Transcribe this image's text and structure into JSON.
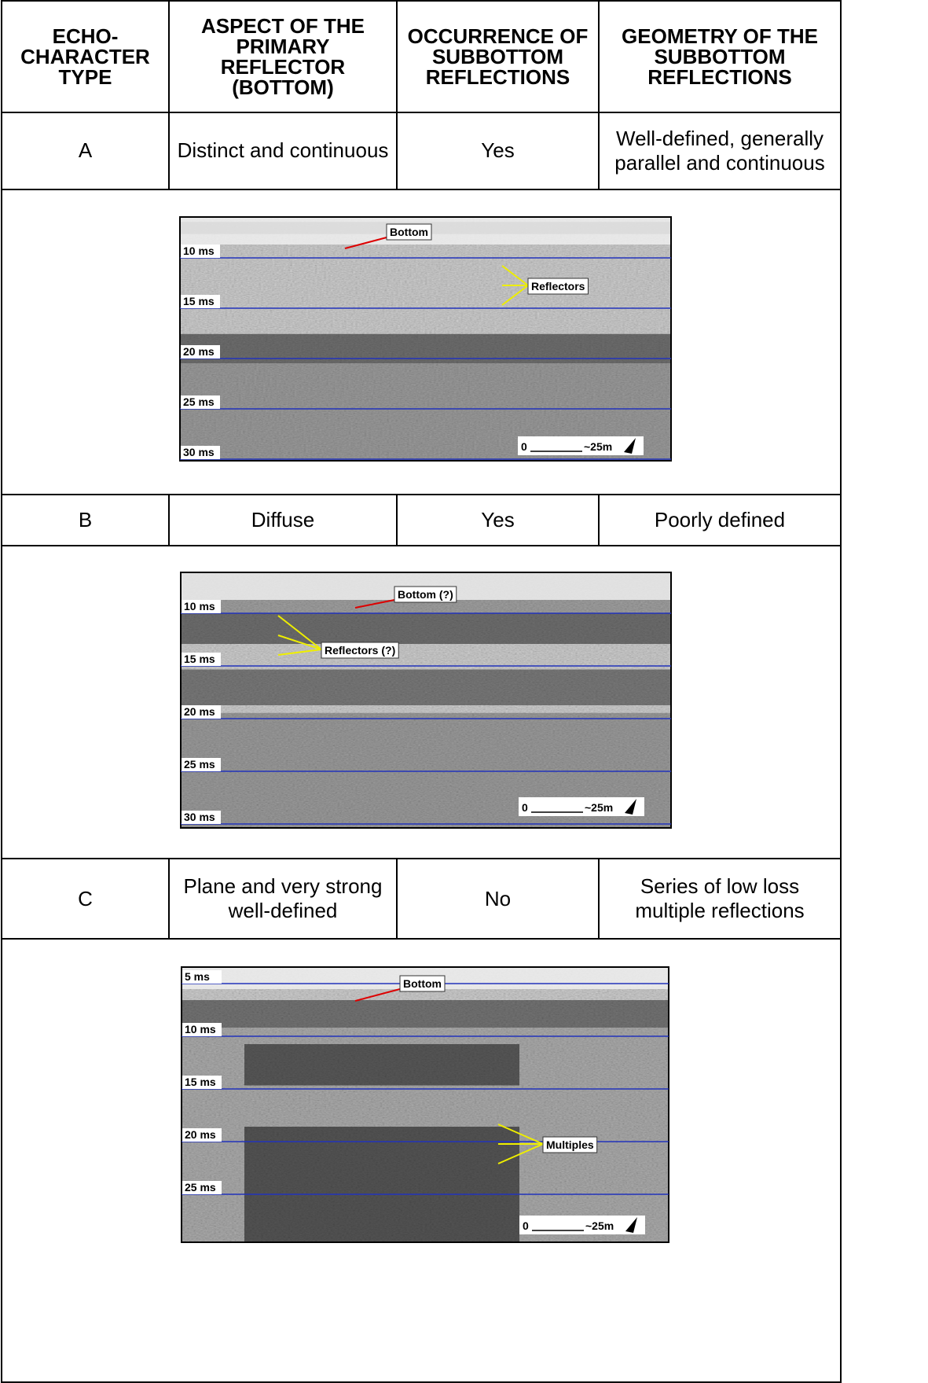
{
  "table": {
    "header": [
      "ECHO-CHARACTER TYPE",
      "ASPECT OF THE PRIMARY REFLECTOR (BOTTOM)",
      "OCCURRENCE OF SUBBOTTOM REFLECTIONS",
      "GEOMETRY OF THE SUBBOTTOM REFLECTIONS"
    ],
    "rows": [
      {
        "cells": [
          "A",
          "Distinct and continuous",
          "Yes",
          "Well-defined, generally parallel and continuous"
        ],
        "figure": {
          "ticks": [
            "10 ms",
            "15 ms",
            "20 ms",
            "25 ms",
            "30 ms"
          ],
          "annotations": [
            "Bottom",
            "Reflectors"
          ],
          "scale": [
            "0",
            "~25m"
          ]
        }
      },
      {
        "cells": [
          "B",
          "Diffuse",
          "Yes",
          "Poorly defined"
        ],
        "figure": {
          "ticks": [
            "10 ms",
            "15 ms",
            "20 ms",
            "25 ms",
            "30 ms"
          ],
          "annotations": [
            "Bottom (?)",
            "Reflectors (?)"
          ],
          "scale": [
            "0",
            "~25m"
          ]
        }
      },
      {
        "cells": [
          "C",
          "Plane and very strong well-defined",
          "No",
          "Series of low loss multiple reflections"
        ],
        "figure": {
          "ticks": [
            "5 ms",
            "10 ms",
            "15 ms",
            "20 ms",
            "25 ms"
          ],
          "annotations": [
            "Bottom",
            "Multiples"
          ],
          "scale": [
            "0",
            "~25m"
          ]
        }
      }
    ]
  }
}
